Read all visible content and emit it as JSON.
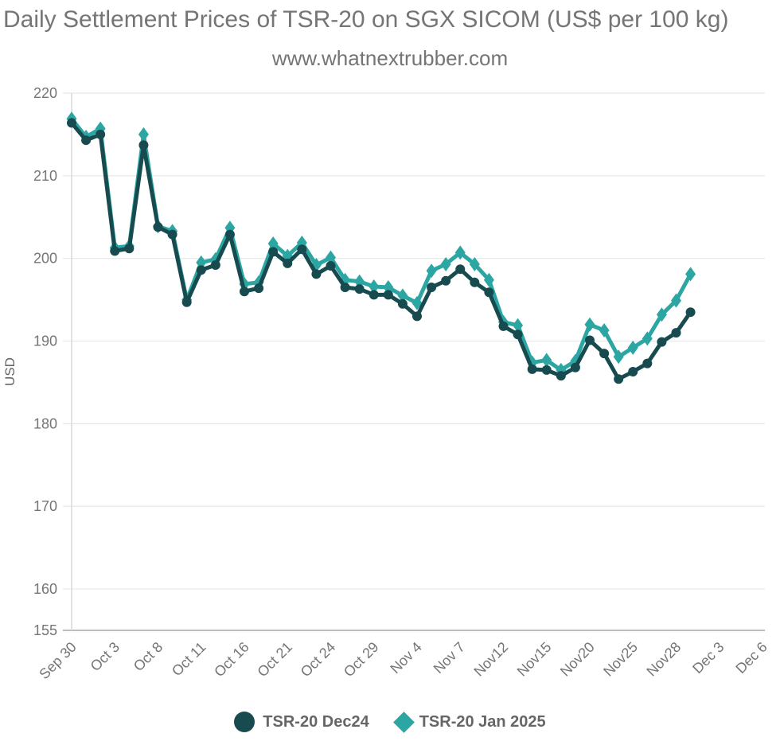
{
  "header": {
    "title": "Daily Settlement Prices of TSR-20 on SGX SICOM (US$ per 100 kg)",
    "subtitle": "www.whatnextrubber.com"
  },
  "chart_data": {
    "type": "line",
    "title": "Daily Settlement Prices of TSR-20 on SGX SICOM (US$ per 100 kg)",
    "subtitle": "www.whatnextrubber.com",
    "ylabel": "USD",
    "ylim": [
      155,
      220
    ],
    "y_ticks": [
      220,
      210,
      200,
      190,
      180,
      170,
      160,
      155
    ],
    "x_tick_labels": [
      "Sep 30",
      "Oct 3",
      "Oct 8",
      "Oct 11",
      "Oct 16",
      "Oct 21",
      "Oct 24",
      "Oct 29",
      "Nov 4",
      "Nov 7",
      "Nov12",
      "Nov15",
      "Nov20",
      "Nov25",
      "Nov28",
      "Dec 3",
      "Dec 6"
    ],
    "x_tick_every": 3,
    "x_total_slots": 49,
    "grid": "horizontal",
    "legend_position": "bottom",
    "series": [
      {
        "name": "TSR-20 Dec24",
        "color": "#174b50",
        "marker": "circle",
        "values": [
          216.4,
          214.3,
          215.0,
          200.9,
          201.2,
          213.7,
          203.8,
          202.9,
          194.7,
          198.6,
          199.2,
          202.9,
          196.0,
          196.4,
          200.8,
          199.4,
          201.1,
          198.1,
          199.1,
          196.5,
          196.3,
          195.6,
          195.6,
          194.5,
          193.0,
          196.5,
          197.3,
          198.7,
          197.1,
          195.9,
          191.8,
          190.8,
          186.6,
          186.5,
          185.8,
          186.8,
          190.1,
          188.5,
          185.4,
          186.3,
          187.3,
          189.9,
          191.0,
          193.5
        ]
      },
      {
        "name": "TSR-20 Jan 2025",
        "color": "#2ca6a3",
        "marker": "diamond",
        "values": [
          216.9,
          214.7,
          215.7,
          201.3,
          201.5,
          215.0,
          203.9,
          203.3,
          195.0,
          199.5,
          199.9,
          203.7,
          196.9,
          197.1,
          201.8,
          200.3,
          201.9,
          199.2,
          200.1,
          197.4,
          197.2,
          196.6,
          196.5,
          195.5,
          194.6,
          198.5,
          199.3,
          200.7,
          199.3,
          197.4,
          192.3,
          191.9,
          187.4,
          187.7,
          186.5,
          187.6,
          192.0,
          191.3,
          188.1,
          189.2,
          190.3,
          193.2,
          194.9,
          198.1
        ]
      }
    ],
    "colors": {
      "grid_line": "#e7e7e7",
      "axis_line": "#a6a6a6",
      "y_axis_line": "#dadada",
      "tick_text": "#757575",
      "title_text": "#757575",
      "legend_text": "#666666"
    }
  }
}
